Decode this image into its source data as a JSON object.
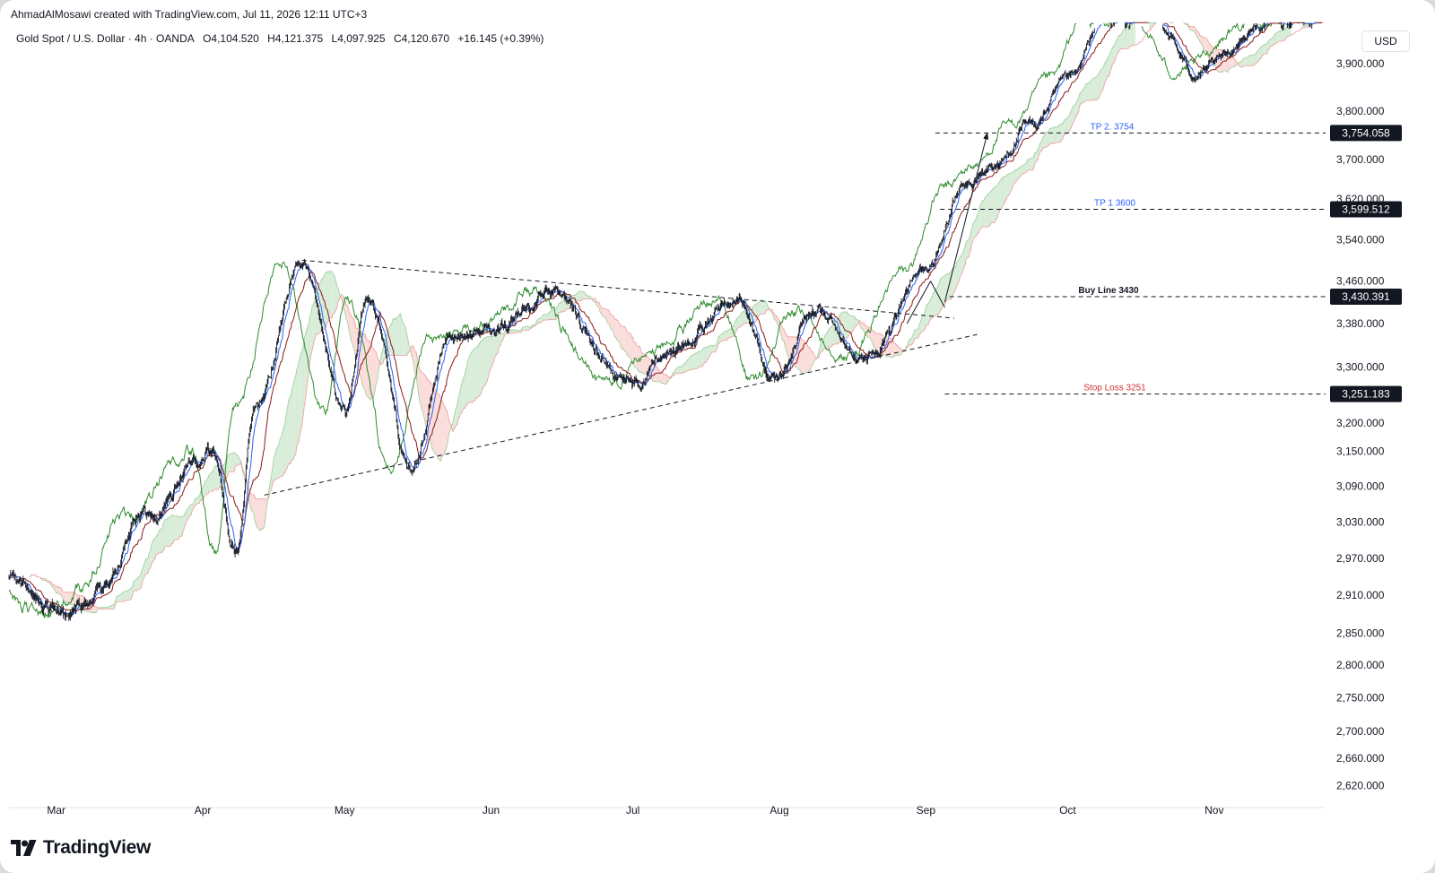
{
  "header": {
    "author_line": "AhmadAlMosawi created with TradingView.com, Jul 11, 2026 12:11 UTC+3",
    "symbol": "Gold Spot / U.S. Dollar · 4h · OANDA",
    "open": "O4,104.520",
    "high": "H4,121.375",
    "low": "L4,097.925",
    "close": "C4,120.670",
    "change": "+16.145 (+0.39%)"
  },
  "currency_button": "USD",
  "brand": {
    "logo_text": "TradingView",
    "logo_icon": "tradingview-logo-icon"
  },
  "colors": {
    "candle": "#131722",
    "chikou": "#2e8b2e",
    "tenkan": "#2962ff",
    "kijun": "#8b1a1a",
    "cloud_bull": "#c8e6c9",
    "cloud_bear": "#f8d0cc",
    "tp_text": "#2962ff",
    "stop_text": "#d32f2f",
    "price_label_bg": "#131722"
  },
  "chart_data": {
    "type": "candlestick",
    "timeframe": "4h",
    "x_axis": {
      "labels": [
        "Mar",
        "Apr",
        "May",
        "Jun",
        "Jul",
        "Aug",
        "Sep",
        "Oct",
        "Nov"
      ],
      "domain": [
        "2025-02-19",
        "2025-11-24"
      ]
    },
    "y_axis": {
      "ticks": [
        "3,900.000",
        "3,800.000",
        "3,700.000",
        "3,620.000",
        "3,540.000",
        "3,460.000",
        "3,380.000",
        "3,300.000",
        "3,200.000",
        "3,150.000",
        "3,090.000",
        "3,030.000",
        "2,970.000",
        "2,910.000",
        "2,850.000",
        "2,800.000",
        "2,750.000",
        "2,700.000",
        "2,660.000",
        "2,620.000"
      ],
      "scale": "log",
      "range": [
        2590,
        3990
      ]
    },
    "price_path": [
      {
        "date": "2025-02-19",
        "price": 2935
      },
      {
        "date": "2025-03-03",
        "price": 2880
      },
      {
        "date": "2025-03-10",
        "price": 2920
      },
      {
        "date": "2025-03-20",
        "price": 3040
      },
      {
        "date": "2025-04-03",
        "price": 3150
      },
      {
        "date": "2025-04-08",
        "price": 2980
      },
      {
        "date": "2025-04-12",
        "price": 3220
      },
      {
        "date": "2025-04-22",
        "price": 3500
      },
      {
        "date": "2025-05-01",
        "price": 3220
      },
      {
        "date": "2025-05-06",
        "price": 3430
      },
      {
        "date": "2025-05-15",
        "price": 3120
      },
      {
        "date": "2025-05-23",
        "price": 3350
      },
      {
        "date": "2025-06-05",
        "price": 3380
      },
      {
        "date": "2025-06-13",
        "price": 3440
      },
      {
        "date": "2025-06-30",
        "price": 3270
      },
      {
        "date": "2025-07-10",
        "price": 3330
      },
      {
        "date": "2025-07-23",
        "price": 3430
      },
      {
        "date": "2025-07-31",
        "price": 3270
      },
      {
        "date": "2025-08-08",
        "price": 3400
      },
      {
        "date": "2025-08-20",
        "price": 3320
      },
      {
        "date": "2025-09-01",
        "price": 3480
      },
      {
        "date": "2025-09-09",
        "price": 3640
      },
      {
        "date": "2025-09-16",
        "price": 3690
      },
      {
        "date": "2025-09-23",
        "price": 3770
      },
      {
        "date": "2025-10-02",
        "price": 3870
      },
      {
        "date": "2025-10-08",
        "price": 3990
      },
      {
        "date": "2025-10-20",
        "price": 3990
      },
      {
        "date": "2025-10-28",
        "price": 3880
      },
      {
        "date": "2025-11-13",
        "price": 3990
      }
    ],
    "levels": [
      {
        "name": "TP 2. 3754",
        "price_label": "3,754.058",
        "price": 3754.058,
        "style": "dashed"
      },
      {
        "name": "TP 1 3600",
        "price_label": "3,599.512",
        "price": 3599.512,
        "style": "dashed"
      },
      {
        "name": "Buy Line 3430",
        "price_label": "3,430.391",
        "price": 3430.391,
        "style": "dashed"
      },
      {
        "name": "Stop Loss 3251",
        "price_label": "3,251.183",
        "price": 3251.183,
        "style": "dashed"
      }
    ],
    "trendlines": [
      {
        "from": {
          "date": "2025-04-22",
          "price": 3500
        },
        "to": {
          "date": "2025-09-07",
          "price": 3390
        }
      },
      {
        "from": {
          "date": "2025-04-14",
          "price": 3075
        },
        "to": {
          "date": "2025-09-12",
          "price": 3360
        }
      }
    ],
    "arrows": [
      {
        "from": {
          "date": "2025-08-28",
          "price": 3380
        },
        "to": {
          "date": "2025-09-02",
          "price": 3460
        }
      },
      {
        "from": {
          "date": "2025-09-02",
          "price": 3460
        },
        "to": {
          "date": "2025-09-05",
          "price": 3410
        }
      },
      {
        "from": {
          "date": "2025-09-05",
          "price": 3420
        },
        "to": {
          "date": "2025-09-14",
          "price": 3754
        }
      }
    ]
  }
}
